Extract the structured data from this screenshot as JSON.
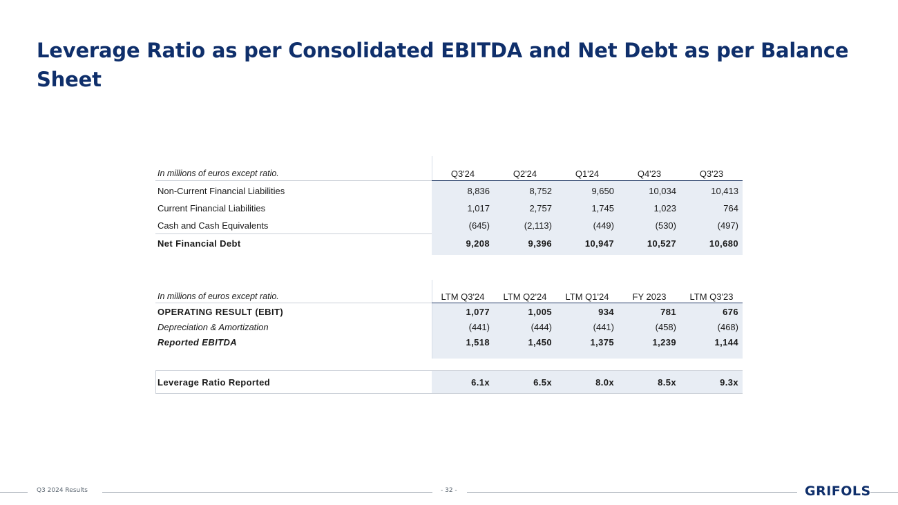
{
  "title": "Leverage Ratio as per Consolidated EBITDA and Net Debt as per Balance Sheet",
  "colors": {
    "title": "#0f2f6b",
    "shade": "#e8edf4",
    "rule": "#1f3864"
  },
  "table1": {
    "caption": "In millions of euros except ratio.",
    "headers": [
      "Q3'24",
      "Q2'24",
      "Q1'24",
      "Q4'23",
      "Q3'23"
    ],
    "rows": [
      {
        "label": "Non-Current Financial Liabilities",
        "values": [
          "8,836",
          "8,752",
          "9,650",
          "10,034",
          "10,413"
        ]
      },
      {
        "label": "Current Financial Liabilities",
        "values": [
          "1,017",
          "2,757",
          "1,745",
          "1,023",
          "764"
        ]
      },
      {
        "label": "Cash and Cash Equivalents",
        "values": [
          "(645)",
          "(2,113)",
          "(449)",
          "(530)",
          "(497)"
        ]
      },
      {
        "label": "Net Financial Debt",
        "values": [
          "9,208",
          "9,396",
          "10,947",
          "10,527",
          "10,680"
        ]
      }
    ]
  },
  "table2": {
    "caption": "In millions of euros except ratio.",
    "headers": [
      "LTM Q3'24",
      "LTM Q2'24",
      "LTM Q1'24",
      "FY 2023",
      "LTM Q3'23"
    ],
    "rows": [
      {
        "label": "OPERATING RESULT (EBIT)",
        "values": [
          "1,077",
          "1,005",
          "934",
          "781",
          "676"
        ]
      },
      {
        "label": "Depreciation & Amortization",
        "values": [
          "(441)",
          "(444)",
          "(441)",
          "(458)",
          "(468)"
        ]
      },
      {
        "label": "Reported EBITDA",
        "values": [
          "1,518",
          "1,450",
          "1,375",
          "1,239",
          "1,144"
        ]
      }
    ]
  },
  "table3": {
    "label": "Leverage Ratio Reported",
    "values": [
      "6.1x",
      "6.5x",
      "8.0x",
      "8.5x",
      "9.3x"
    ]
  },
  "footer": {
    "left": "Q3 2024 Results",
    "page": "- 32 -",
    "logo": "GRIFOLS"
  }
}
